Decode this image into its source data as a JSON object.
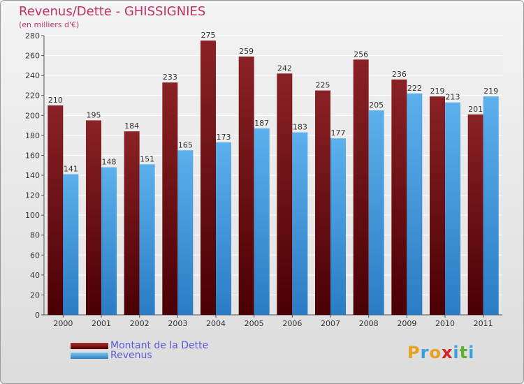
{
  "chart_data": {
    "type": "bar",
    "title": "Revenus/Dette - GHISSIGNIES",
    "subtitle": "(en milliers d'€)",
    "categories": [
      "2000",
      "2001",
      "2002",
      "2003",
      "2004",
      "2005",
      "2006",
      "2007",
      "2008",
      "2009",
      "2010",
      "2011"
    ],
    "series": [
      {
        "name": "Montant de la Dette",
        "color": "#7a1418",
        "values": [
          210,
          195,
          184,
          233,
          275,
          259,
          242,
          225,
          256,
          236,
          219,
          201
        ]
      },
      {
        "name": "Revenus",
        "color": "#4a9fe0",
        "values": [
          141,
          148,
          151,
          165,
          173,
          187,
          183,
          177,
          205,
          222,
          213,
          219
        ]
      }
    ],
    "yticks": [
      0,
      20,
      40,
      60,
      80,
      100,
      120,
      140,
      160,
      180,
      200,
      220,
      240,
      260,
      280
    ],
    "ylim": [
      0,
      280
    ],
    "grid": true,
    "legend_position": "bottom-left"
  },
  "logo": {
    "letters": [
      "P",
      "r",
      "o",
      "x",
      "i",
      "t",
      "i"
    ],
    "colors": [
      "#e8a020",
      "#3aa0d8",
      "#e8a020",
      "#d82020",
      "#3aa0d8",
      "#60b030",
      "#3aa0d8"
    ]
  }
}
